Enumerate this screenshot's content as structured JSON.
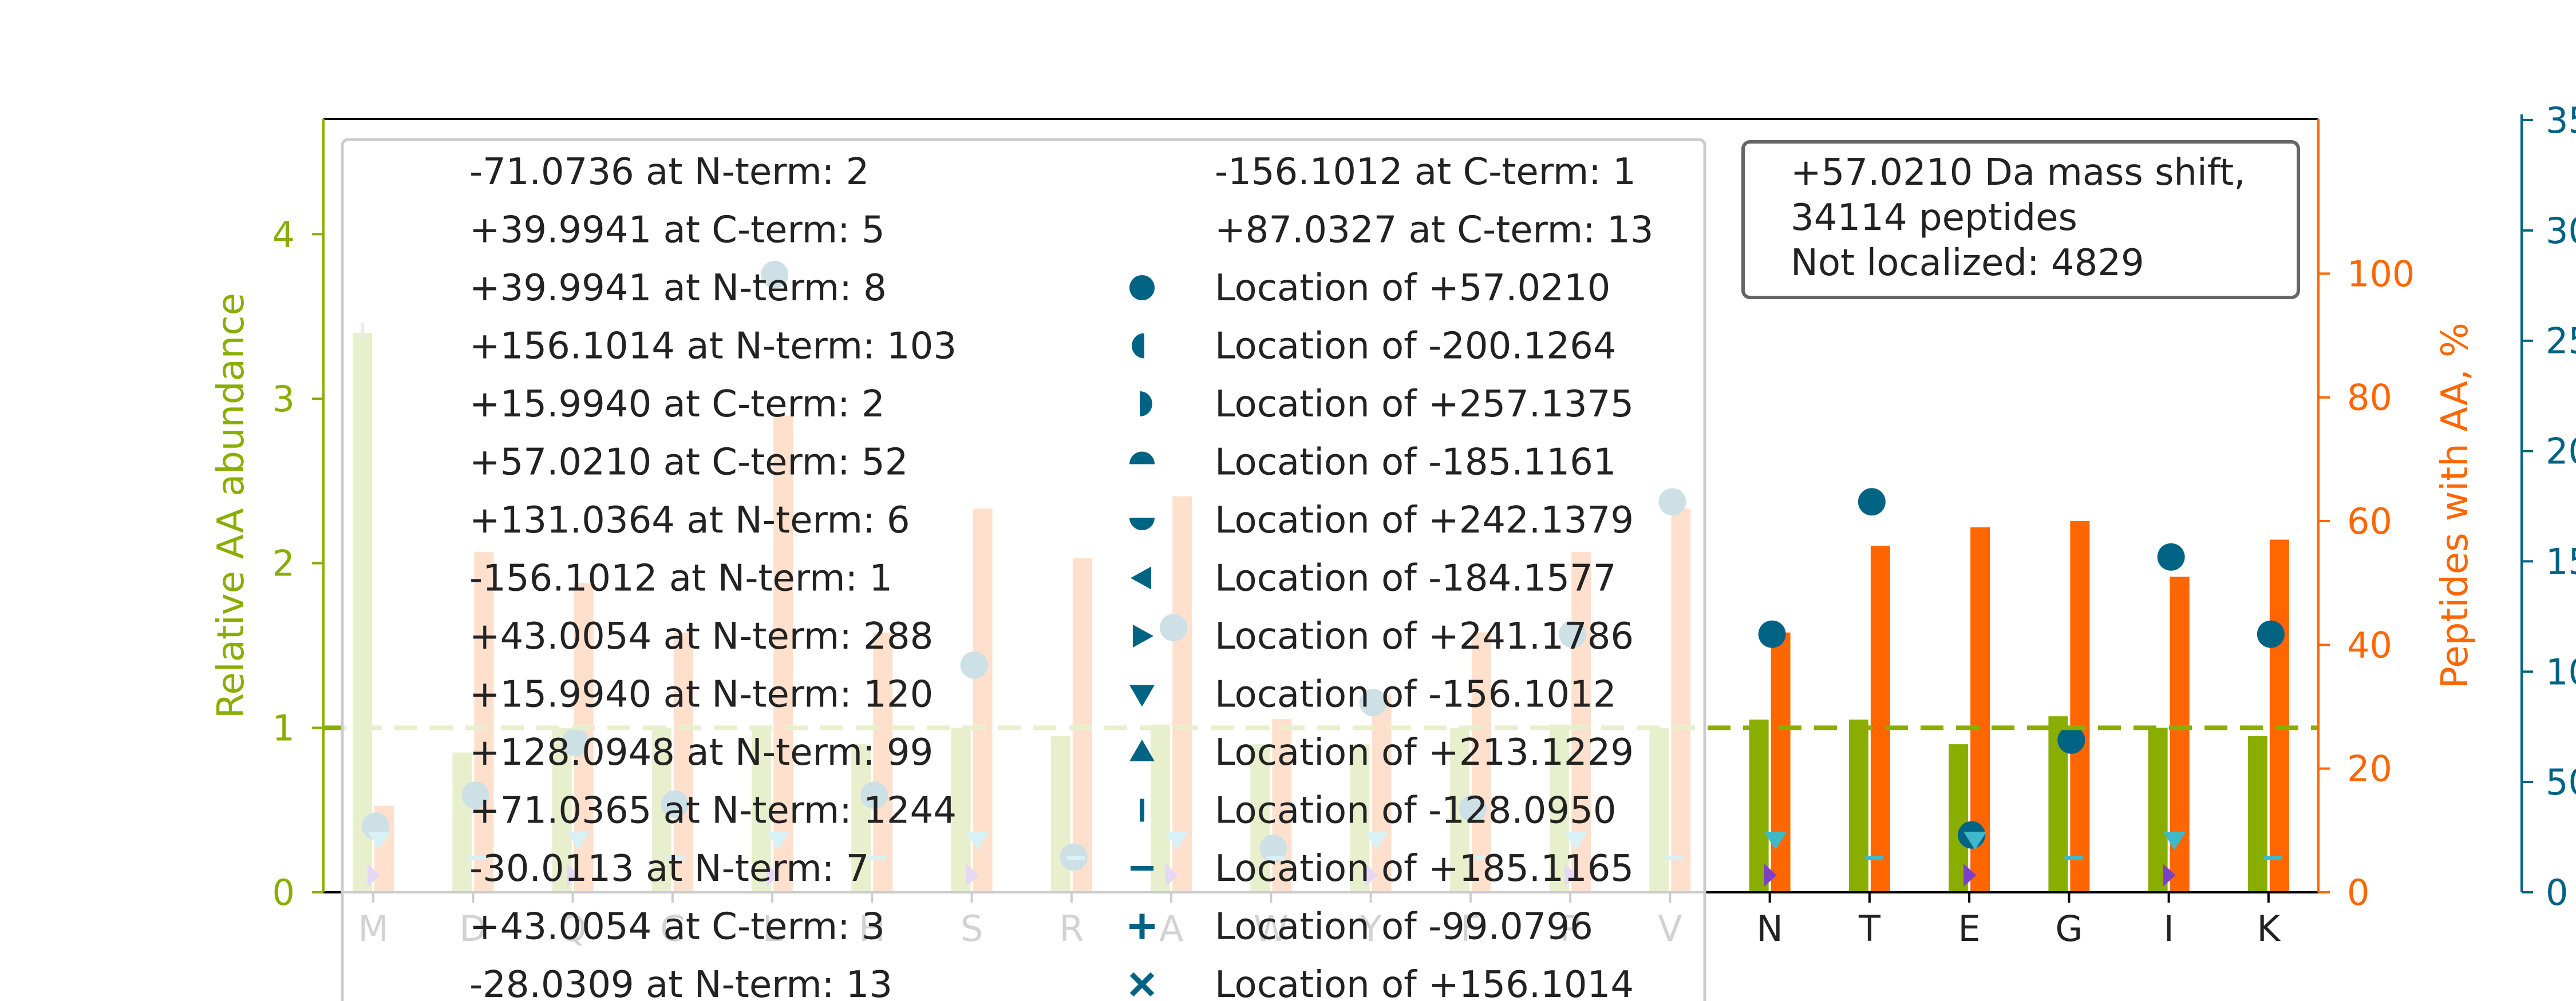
{
  "chart_data": {
    "type": "bar",
    "categories": [
      "M",
      "D",
      "Q",
      "C",
      "L",
      "H",
      "S",
      "R",
      "A",
      "W",
      "Y",
      "F",
      "P",
      "V",
      "N",
      "T",
      "E",
      "G",
      "I",
      "K"
    ],
    "series": [
      {
        "axis": "left",
        "values": [
          3.4,
          0.85,
          1.0,
          1.0,
          1.0,
          0.9,
          1.0,
          0.95,
          1.02,
          0.9,
          0.9,
          1.0,
          1.02,
          1.0,
          1.05,
          1.05,
          0.9,
          1.07,
          1.0,
          0.95
        ]
      },
      {
        "axis": "right",
        "values": [
          14,
          55,
          50,
          42,
          77,
          42,
          62,
          54,
          64,
          28,
          32,
          42,
          55,
          62,
          42,
          56,
          59,
          60,
          51,
          57
        ]
      },
      {
        "axis": "third",
        "values": [
          3000,
          4400,
          6800,
          4000,
          28000,
          4400,
          10300,
          1600,
          12000,
          2000,
          8600,
          3800,
          11700,
          17700,
          11700,
          17700,
          2600,
          6900,
          15200,
          11700
        ]
      }
    ],
    "ylabel": "Relative AA abundance",
    "y2label": "Peptides with AA, %",
    "ylim": [
      0,
      4.7
    ],
    "y2lim": [
      0,
      125
    ],
    "y3lim": [
      0,
      35000
    ],
    "yticks": [
      "0",
      "1",
      "2",
      "3",
      "4"
    ],
    "y2ticks": [
      "0",
      "20",
      "40",
      "60",
      "80",
      "100"
    ],
    "y3ticks": [
      "0",
      "50",
      "10",
      "15",
      "20",
      "25",
      "30",
      "35"
    ],
    "reference_line": 1.0,
    "legend": {
      "col1": [
        "-71.0736 at N-term: 2",
        "+39.9941 at C-term: 5",
        "+39.9941 at N-term: 8",
        "+156.1014 at N-term: 103",
        "+15.9940 at C-term: 2",
        "+57.0210 at C-term: 52",
        "+131.0364 at N-term: 6",
        "-156.1012 at N-term: 1",
        "+43.0054 at N-term: 288",
        "+15.9940 at N-term: 120",
        "+128.0948 at N-term: 99",
        "+71.0365 at N-term: 1244",
        "-30.0113 at N-term: 7",
        "+43.0054 at C-term: 3",
        "-28.0309 at N-term: 13"
      ],
      "col2": [
        "-156.1012 at C-term: 1",
        "+87.0327 at C-term: 13",
        "Location of +57.0210",
        "Location of -200.1264",
        "Location of +257.1375",
        "Location of -185.1161",
        "Location of +242.1379",
        "Location of -184.1577",
        "Location of +241.1786",
        "Location of -156.1012",
        "Location of +213.1229",
        "Location of -128.0950",
        "Location of +185.1165",
        "Location of -99.0796",
        "Location of +156.1014"
      ],
      "col2_markers": [
        "",
        "",
        "circle",
        "circle-left",
        "circle-right",
        "circle-top",
        "circle-bottom",
        "tri-left",
        "tri-right",
        "tri-down",
        "tri-up",
        "vline",
        "hline",
        "plus",
        "x"
      ]
    },
    "info_box": [
      "+57.0210 Da mass shift,",
      "34114 peptides",
      "Not localized: 4829"
    ],
    "colors": {
      "left": "#8aae00",
      "right": "#ff6600",
      "third": "#006383",
      "marker_light": "#cbe3e9",
      "purple": "#7c3fc9",
      "cyan": "#3fb8c9"
    }
  }
}
